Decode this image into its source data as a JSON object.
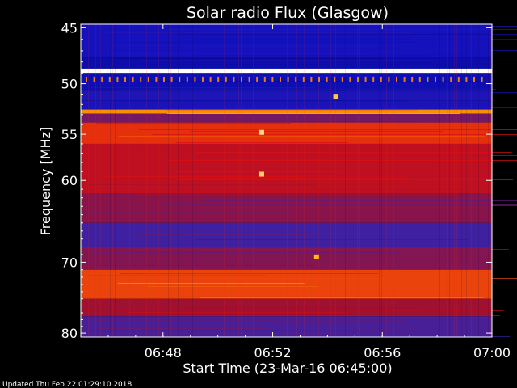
{
  "chart_data": {
    "type": "heatmap",
    "title": "Solar radio Flux (Glasgow)",
    "xlabel": "Start Time (23-Mar-16 06:45:00)",
    "ylabel": "Frequency [MHz]",
    "x_unit": "time (minutes after 06:45:00)",
    "xlim": [
      0,
      15
    ],
    "ylim": [
      44.7,
      80.6
    ],
    "y_scale": "log",
    "y_inverted": true,
    "x_ticks": [
      {
        "value": 3,
        "label": "06:48"
      },
      {
        "value": 7,
        "label": "06:52"
      },
      {
        "value": 11,
        "label": "06:56"
      },
      {
        "value": 15,
        "label": "07:00"
      }
    ],
    "y_ticks": [
      {
        "value": 45,
        "label": "45"
      },
      {
        "value": 50,
        "label": "50"
      },
      {
        "value": 55,
        "label": "55"
      },
      {
        "value": 60,
        "label": "60"
      },
      {
        "value": 70,
        "label": "70"
      },
      {
        "value": 80,
        "label": "80"
      }
    ],
    "colormap": [
      "#000040",
      "#1010c0",
      "#4020a0",
      "#a01030",
      "#e01010",
      "#ffb000",
      "#ffffff"
    ],
    "bands": [
      {
        "freq": [
          44.7,
          47.6
        ],
        "level": 0.18
      },
      {
        "freq": [
          47.6,
          48.6
        ],
        "level": 0.14
      },
      {
        "freq": [
          48.6,
          49.0
        ],
        "level": 1.0
      },
      {
        "freq": [
          49.0,
          50.6
        ],
        "level": 0.15
      },
      {
        "freq": [
          50.6,
          51.6
        ],
        "level": 0.22
      },
      {
        "freq": [
          51.6,
          52.5
        ],
        "level": 0.2
      },
      {
        "freq": [
          52.5,
          52.9
        ],
        "level": 0.8
      },
      {
        "freq": [
          52.9,
          53.8
        ],
        "level": 0.42
      },
      {
        "freq": [
          53.8,
          56.0
        ],
        "level": 0.7
      },
      {
        "freq": [
          56.0,
          61.5
        ],
        "level": 0.58
      },
      {
        "freq": [
          61.5,
          65.0
        ],
        "level": 0.46
      },
      {
        "freq": [
          65.0,
          68.0
        ],
        "level": 0.33
      },
      {
        "freq": [
          68.0,
          71.0
        ],
        "level": 0.45
      },
      {
        "freq": [
          71.0,
          75.0
        ],
        "level": 0.72
      },
      {
        "freq": [
          75.0,
          77.5
        ],
        "level": 0.5
      },
      {
        "freq": [
          77.5,
          80.6
        ],
        "level": 0.35
      }
    ],
    "bursts": [
      {
        "time": 6.6,
        "freq": 54.8,
        "level": 0.92
      },
      {
        "time": 6.6,
        "freq": 59.3,
        "level": 0.9
      },
      {
        "time": 9.3,
        "freq": 51.2,
        "level": 0.88
      },
      {
        "time": 8.6,
        "freq": 69.3,
        "level": 0.85
      }
    ]
  },
  "footer": {
    "updated": "Updated Thu Feb 22 01:29:10 2018"
  }
}
